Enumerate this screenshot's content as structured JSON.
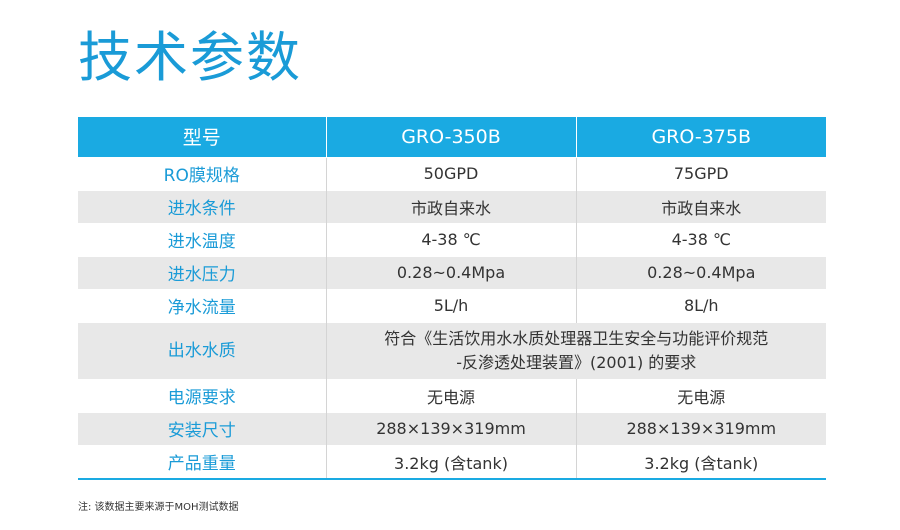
{
  "title": "技术参数",
  "table": {
    "headers": [
      "型号",
      "GRO-350B",
      "GRO-375B"
    ],
    "rows": [
      {
        "label": "RO膜规格",
        "v1": "50GPD",
        "v2": "75GPD"
      },
      {
        "label": "进水条件",
        "v1": "市政自来水",
        "v2": "市政自来水"
      },
      {
        "label": "进水温度",
        "v1": "4-38 ℃",
        "v2": "4-38 ℃"
      },
      {
        "label": "进水压力",
        "v1": "0.28~0.4Mpa",
        "v2": "0.28~0.4Mpa"
      },
      {
        "label": "净水流量",
        "v1": "5L/h",
        "v2": "8L/h"
      },
      {
        "label": "出水水质",
        "merged_line1": "符合《生活饮用水水质处理器卫生安全与功能评价规范",
        "merged_line2": "-反渗透处理装置》(2001) 的要求"
      },
      {
        "label": "电源要求",
        "v1": "无电源",
        "v2": "无电源"
      },
      {
        "label": "安装尺寸",
        "v1": "288×139×319mm",
        "v2": "288×139×319mm"
      },
      {
        "label": "产品重量",
        "v1": "3.2kg (含tank)",
        "v2": "3.2kg (含tank)"
      }
    ]
  },
  "footnote": "注: 该数据主要来源于MOH测试数据"
}
